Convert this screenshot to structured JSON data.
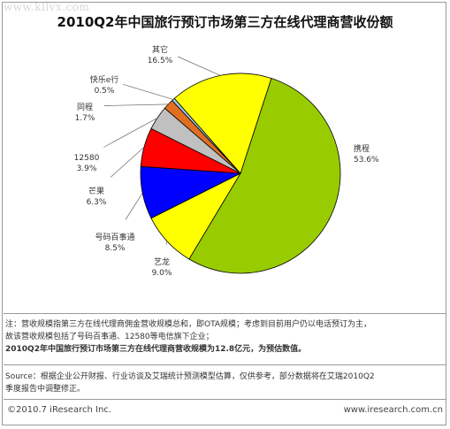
{
  "watermark": "www.kllvx.com",
  "chart_data": {
    "type": "pie",
    "title": "2010Q2年中国旅行预订市场第三方在线代理商营收份额",
    "slices": [
      {
        "name": "携程",
        "value": 53.6,
        "label": "53.6%",
        "color": "#99cc00"
      },
      {
        "name": "艺龙",
        "value": 9.0,
        "label": "9.0%",
        "color": "#ffff00"
      },
      {
        "name": "号码百事通",
        "value": 8.5,
        "label": "8.5%",
        "color": "#0000ff"
      },
      {
        "name": "芒果",
        "value": 6.3,
        "label": "6.3%",
        "color": "#ff0000"
      },
      {
        "name": "12580",
        "value": 3.9,
        "label": "3.9%",
        "color": "#c0c0c0"
      },
      {
        "name": "同程",
        "value": 1.7,
        "label": "1.7%",
        "color": "#e07020"
      },
      {
        "name": "快乐e行",
        "value": 0.5,
        "label": "0.5%",
        "color": "#a0c8e8"
      },
      {
        "name": "其它",
        "value": 16.5,
        "label": "16.5%",
        "color": "#ffff00"
      }
    ]
  },
  "notes": {
    "line1": "注：营收规模指第三方在线代理商佣金营收规模总和，即OTA规模；考虑到目前用户仍以电话预订为主，",
    "line2": "故该营收规模包括了号码百事通、12580等电信旗下企业；",
    "line3": "2010Q2年中国旅行预订市场第三方在线代理商营收规模为12.8亿元，为预估数值。"
  },
  "source": {
    "line1": "Source：根据企业公开财报、行业访谈及艾瑞统计预测模型估算，仅供参考，部分数据将在艾瑞2010Q2",
    "line2": "季度报告中调整修正。"
  },
  "footer": {
    "copyright": "©2010.7 iResearch Inc.",
    "website": "www.iresearch.com.cn"
  }
}
